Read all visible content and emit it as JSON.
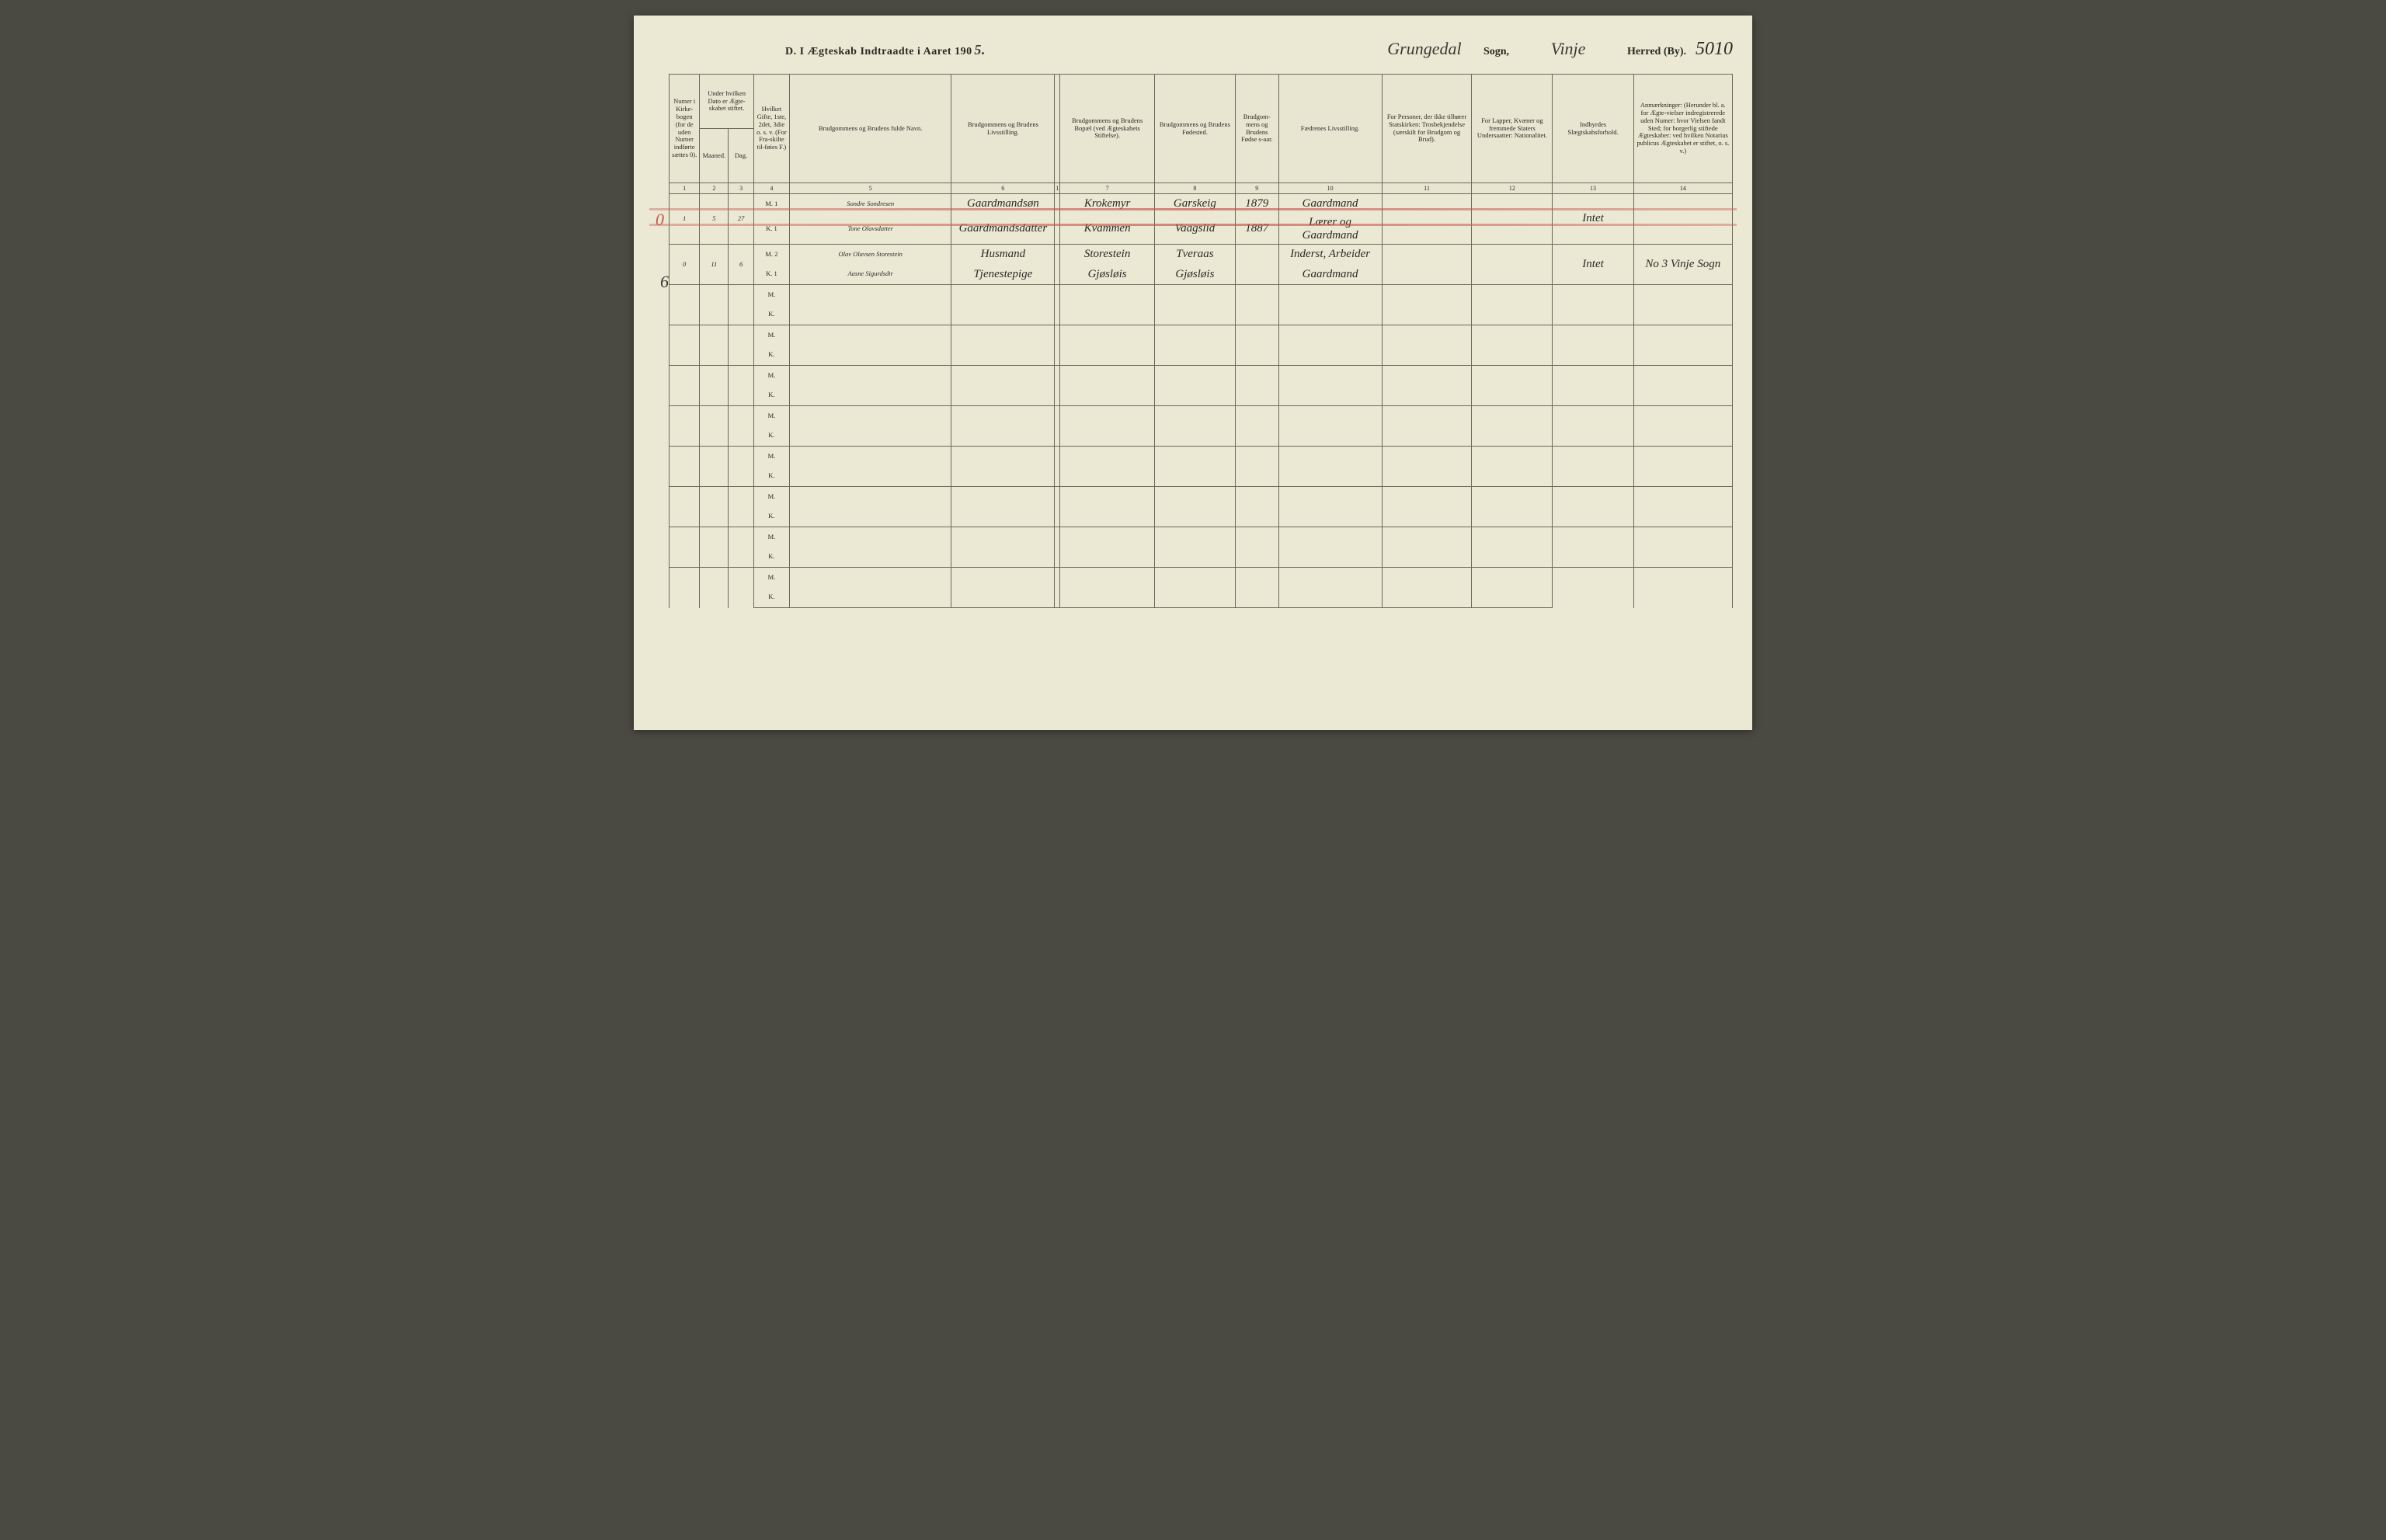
{
  "header": {
    "title_prefix": "D.  I Ægteskab Indtraadte i Aaret 190",
    "year_suffix": "5.",
    "sogn_label": "Sogn,",
    "sogn_value": "Grungedal",
    "herred_label": "Herred (By).",
    "herred_value": "Vinje",
    "page_number": "5010"
  },
  "columns": {
    "c1": "Numer i Kirke-bogen (for de uden Numer indførte sættes 0).",
    "c2a": "Under hvilken Dato er Ægte-skabet stiftet.",
    "c2_m": "Maaned.",
    "c2_d": "Dag.",
    "c3": "Hvilket Gifte, 1ste, 2det, 3die o. s. v. (For Fra-skilte til-føies F.)",
    "c4": "Brudgommens og Brudens fulde Navn.",
    "c5": "Brudgommens og Brudens Livsstilling.",
    "c6": "Brudgommens og Brudens Bopæl (ved Ægteskabets Stiftelse).",
    "c7": "Brudgommens og Brudens Fødested.",
    "c8": "Brudgom-mens og Brudens Fødse s-aar.",
    "c9": "Fædrenes Livsstilling.",
    "c10": "For Personer, der ikke tilhører Statskirken: Trosbekjendelse (særskilt for Brudgom og Brud).",
    "c11": "For Lapper, Kvæner og fremmede Staters Undersaatter: Nationalitet.",
    "c12": "Indbyrdes Slægtskabsforhold.",
    "c13": "Anmærkninger: (Herunder bl. a. for Ægte-vielser indregistrerede uden Numer: hvor Vielsen fandt Sted; for borgerlig stiftede Ægteskaber: ved hvilken Notarius publicus Ægteskabet er stiftet, o. s. v.)"
  },
  "colnums": [
    "1",
    "2",
    "3",
    "4",
    "5",
    "6",
    "1",
    "7",
    "8",
    "9",
    "10",
    "11",
    "12",
    "13",
    "14"
  ],
  "rows": [
    {
      "num": "1",
      "month": "5",
      "day": "27",
      "m": {
        "mk": "M. 1",
        "name": "Sondre Sondresen",
        "occ": "Gaardmandsøn",
        "res": "Krokemyr",
        "birthpl": "Garskeig",
        "year": "1879",
        "father": "Gaardmand"
      },
      "k": {
        "mk": "K. 1",
        "name": "Tone Olavsdatter",
        "occ": "Gaardmandsdatter",
        "res": "Kvammen",
        "birthpl": "Vaagslid",
        "year": "1887",
        "father": "Lærer og Gaardmand"
      },
      "rel": "Intet"
    },
    {
      "num": "0",
      "month": "11",
      "day": "6",
      "m": {
        "mk": "M. 2",
        "name": "Olav Olavsen Storestein",
        "occ": "Husmand",
        "res": "Storestein",
        "birthpl": "Tveraas",
        "year": "",
        "father": "Inderst, Arbeider"
      },
      "k": {
        "mk": "K. 1",
        "name": "Aasne Sigurdsdtr",
        "occ": "Tjenestepige",
        "res": "Gjøsløis",
        "birthpl": "Gjøsløis",
        "year": "",
        "father": "Gaardmand"
      },
      "rel": "Intet",
      "note": "No 3 Vinje Sogn"
    }
  ],
  "marks": {
    "margin_tick": "6"
  },
  "style": {
    "page_bg": "#ebe8d4",
    "border": "#6a6a58",
    "text": "#2a2a25",
    "script": "#3a3832",
    "redline": "#c45a50"
  }
}
